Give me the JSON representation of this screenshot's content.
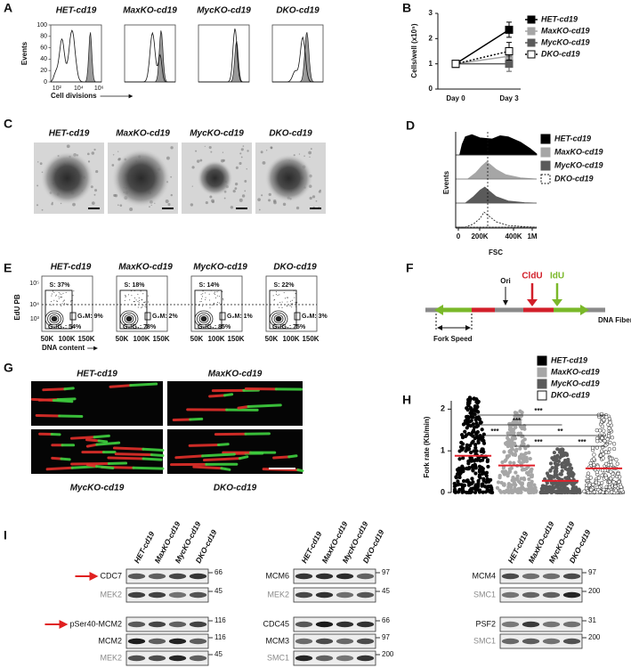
{
  "figure": {
    "panel_labels": [
      "A",
      "B",
      "C",
      "D",
      "E",
      "F",
      "G",
      "H",
      "I"
    ],
    "genotypes": [
      "HET-cd19",
      "MaxKO-cd19",
      "MycKO-cd19",
      "DKO-cd19"
    ],
    "a": {
      "y_label": "Events",
      "ylim": [
        0,
        100
      ],
      "yticks": [
        0,
        20,
        40,
        60,
        80,
        100
      ],
      "xticks": [
        "10²",
        "10⁴",
        "10⁶"
      ],
      "x_label": "Cell divisions"
    },
    "d": {
      "y_label": "Events",
      "xticks": [
        "0",
        "200K",
        "400K",
        "1M"
      ],
      "x_label": "FSC"
    },
    "e": {
      "y_label": "EdU PB",
      "yticks": [
        "10⁵",
        "10⁴",
        "10³"
      ],
      "xticks": [
        "50K",
        "100K",
        "150K"
      ],
      "x_label": "DNA content",
      "gates": [
        [
          "S: 37%",
          "G₂M: 9%",
          "G₀/G₁: 54%"
        ],
        [
          "S: 18%",
          "G₂M: 2%",
          "G₀/G₁: 78%"
        ],
        [
          "S: 14%",
          "G₂M: 1%",
          "G₀/G₁: 85%"
        ],
        [
          "S: 22%",
          "G₂M: 3%",
          "G₀/G₁: 75%"
        ]
      ]
    },
    "f": {
      "ori": "Ori",
      "cldu": "CldU",
      "idu": "IdU",
      "fiber": "DNA Fiber",
      "fork_speed": "Fork Speed"
    },
    "i": {
      "blots": [
        {
          "rows": [
            {
              "label": "CDC7",
              "marker": 66,
              "arrow": true
            },
            {
              "label": "MEK2",
              "marker": 45,
              "control": true
            },
            {
              "label": "pSer40-MCM2",
              "marker": 116,
              "arrow": true
            },
            {
              "label": "MCM2",
              "marker": 116
            },
            {
              "label": "MEK2",
              "marker": 45,
              "control": true
            }
          ]
        },
        {
          "rows": [
            {
              "label": "MCM6",
              "marker": 97
            },
            {
              "label": "MEK2",
              "marker": 45,
              "control": true
            },
            {
              "label": "CDC45",
              "marker": 66
            },
            {
              "label": "MCM3",
              "marker": 97
            },
            {
              "label": "SMC1",
              "marker": 200,
              "control": true
            }
          ]
        },
        {
          "rows": [
            {
              "label": "MCM4",
              "marker": 97
            },
            {
              "label": "SMC1",
              "marker": 200,
              "control": true
            },
            {
              "label": "PSF2",
              "marker": 31
            },
            {
              "label": "SMC1",
              "marker": 200,
              "control": true
            }
          ]
        }
      ]
    }
  },
  "chart_data": [
    {
      "type": "line",
      "y_label": "Cells/well (x10⁵)",
      "categories": [
        "Day 0",
        "Day 3"
      ],
      "ylim": [
        0,
        3
      ],
      "yticks": [
        0,
        1,
        2,
        3
      ],
      "series": [
        {
          "name": "HET-cd19",
          "color": "#000000",
          "line_color": "#000000",
          "values": [
            1,
            2.35
          ],
          "errors": [
            0,
            0.3
          ]
        },
        {
          "name": "MaxKO-cd19",
          "color": "#a6a6a6",
          "line_color": "#a6a6a6",
          "values": [
            1,
            1.3
          ],
          "errors": [
            0,
            0.2
          ]
        },
        {
          "name": "MycKO-cd19",
          "color": "#5a5a5a",
          "line_color": "#5a5a5a",
          "values": [
            1,
            1.0
          ],
          "errors": [
            0,
            0.3
          ]
        },
        {
          "name": "DKO-cd19",
          "color": "#ffffff",
          "line_color": "#000000",
          "line_style": "dotted",
          "values": [
            1,
            1.5
          ],
          "errors": [
            0,
            0.35
          ]
        }
      ]
    },
    {
      "type": "strip",
      "y_label": "Fork rate (Kb/min)",
      "ylim": [
        0,
        2.2
      ],
      "yticks": [
        0,
        1,
        2
      ],
      "series": [
        {
          "name": "HET-cd19",
          "color": "#000000",
          "mean": 0.88,
          "max": 2.3
        },
        {
          "name": "MaxKO-cd19",
          "color": "#a6a6a6",
          "mean": 0.65,
          "max": 2.0
        },
        {
          "name": "MycKO-cd19",
          "color": "#5a5a5a",
          "mean": 0.28,
          "max": 1.05
        },
        {
          "name": "DKO-cd19",
          "color": "#ffffff",
          "mean": 0.58,
          "max": 1.9
        }
      ],
      "comparisons": [
        {
          "between": [
            "HET-cd19",
            "DKO-cd19"
          ],
          "label": "***"
        },
        {
          "between": [
            "HET-cd19",
            "MycKO-cd19"
          ],
          "label": "***"
        },
        {
          "between": [
            "HET-cd19",
            "MaxKO-cd19"
          ],
          "label": "***"
        },
        {
          "between": [
            "MaxKO-cd19",
            "DKO-cd19"
          ],
          "label": "**"
        },
        {
          "between": [
            "MaxKO-cd19",
            "MycKO-cd19"
          ],
          "label": "***"
        },
        {
          "between": [
            "MycKO-cd19",
            "DKO-cd19"
          ],
          "label": "***"
        }
      ]
    }
  ]
}
